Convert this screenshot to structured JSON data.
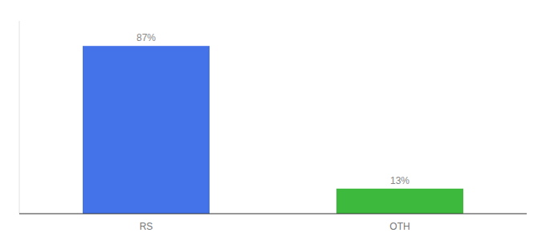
{
  "chart_data": {
    "type": "bar",
    "categories": [
      "RS",
      "OTH"
    ],
    "values": [
      87,
      13
    ],
    "value_labels": [
      "87%",
      "13%"
    ],
    "colors": [
      "#4472e8",
      "#3dba3d"
    ],
    "ylim": [
      0,
      100
    ],
    "data_labels": true,
    "tick_labels": "x"
  }
}
